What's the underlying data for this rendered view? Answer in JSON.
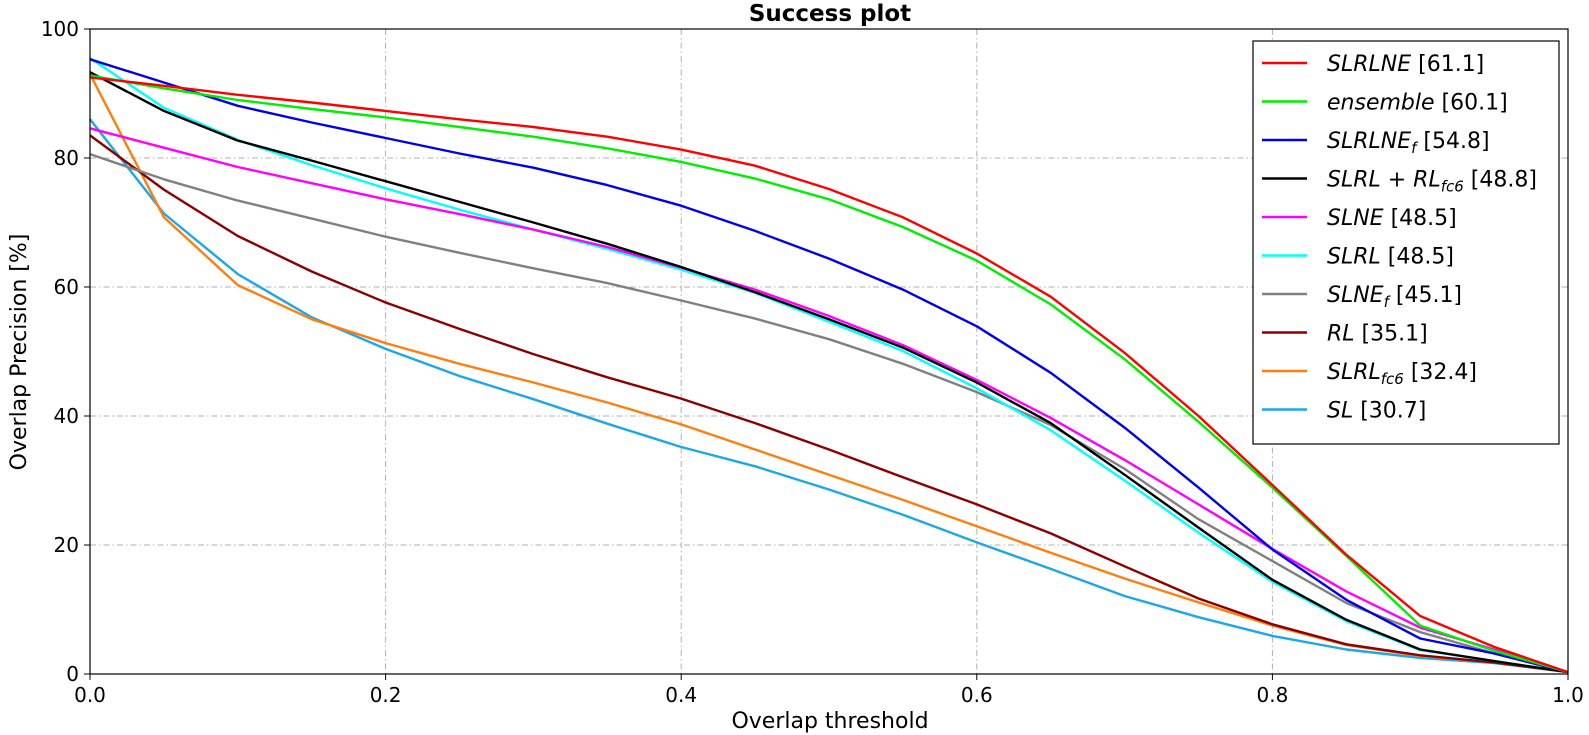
{
  "chart_data": {
    "type": "line",
    "title": "Success plot",
    "xlabel": "Overlap threshold",
    "ylabel": "Overlap Precision [%]",
    "xlim": [
      0,
      1
    ],
    "ylim": [
      0,
      100
    ],
    "x_ticks": [
      "0.0",
      "0.2",
      "0.4",
      "0.6",
      "0.8",
      "1.0"
    ],
    "y_ticks": [
      "0",
      "20",
      "40",
      "60",
      "80",
      "100"
    ],
    "grid": true,
    "legend_position": "top-right",
    "x": [
      0,
      0.05,
      0.1,
      0.15,
      0.2,
      0.25,
      0.3,
      0.35,
      0.4,
      0.45,
      0.5,
      0.55,
      0.6,
      0.65,
      0.7,
      0.75,
      0.8,
      0.85,
      0.9,
      0.95,
      1.0
    ],
    "series": [
      {
        "name": "SLRLNE",
        "base": "SLRLNE",
        "sub": "",
        "score": "[61.1]",
        "color": "#ff0000",
        "values": [
          92.5,
          91.2,
          89.8,
          88.6,
          87.3,
          86.0,
          84.8,
          83.3,
          81.3,
          78.8,
          75.2,
          70.8,
          65.2,
          58.5,
          49.8,
          40.0,
          29.3,
          18.5,
          9.0,
          4.2,
          0.3
        ]
      },
      {
        "name": "ensemble",
        "base": "ensemble",
        "sub": "",
        "score": "[60.1]",
        "color": "#00ee00",
        "values": [
          92.8,
          90.8,
          89.0,
          87.6,
          86.3,
          84.8,
          83.3,
          81.5,
          79.4,
          76.8,
          73.6,
          69.3,
          64.1,
          57.3,
          48.8,
          39.1,
          28.9,
          18.3,
          7.5,
          3.6,
          0.3
        ]
      },
      {
        "name": "SLRLNEf",
        "base": "SLRLNE",
        "sub": "f",
        "score": "[54.8]",
        "color": "#0000ee",
        "values": [
          95.3,
          91.7,
          88.1,
          85.5,
          83.1,
          80.7,
          78.5,
          75.8,
          72.6,
          68.7,
          64.4,
          59.6,
          53.9,
          46.7,
          38.2,
          28.9,
          19.3,
          11.5,
          5.5,
          3.2,
          0.3
        ]
      },
      {
        "name": "SLRL+RLfc6",
        "base": "SLRL + RL",
        "sub": "fc6",
        "score": "[48.8]",
        "color": "#000000",
        "values": [
          93.3,
          87.3,
          82.7,
          79.6,
          76.4,
          73.2,
          70.0,
          66.7,
          63.1,
          59.2,
          55.0,
          50.6,
          45.2,
          38.9,
          30.9,
          22.7,
          14.6,
          8.4,
          3.8,
          2.0,
          0.3
        ]
      },
      {
        "name": "SLNE",
        "base": "SLNE",
        "sub": "",
        "score": "[48.5]",
        "color": "#ff00ff",
        "values": [
          84.6,
          81.6,
          78.6,
          76.1,
          73.6,
          71.3,
          68.9,
          66.2,
          63.0,
          59.6,
          55.5,
          51.0,
          45.6,
          39.7,
          33.2,
          26.3,
          19.4,
          12.8,
          7.2,
          3.8,
          0.3
        ]
      },
      {
        "name": "SLRL",
        "base": "SLRL",
        "sub": "",
        "score": "[48.5]",
        "color": "#00ffff",
        "values": [
          95.5,
          87.8,
          82.8,
          78.9,
          75.3,
          72.0,
          68.9,
          65.9,
          62.7,
          59.1,
          54.6,
          50.1,
          44.3,
          37.8,
          30.0,
          21.9,
          14.3,
          8.2,
          3.7,
          2.0,
          0.3
        ]
      },
      {
        "name": "SLNEf",
        "base": "SLNE",
        "sub": "f",
        "score": "[45.1]",
        "color": "#808080",
        "values": [
          80.6,
          76.7,
          73.4,
          70.6,
          67.8,
          65.3,
          62.9,
          60.6,
          57.9,
          55.1,
          51.9,
          48.1,
          43.7,
          38.6,
          31.8,
          24.0,
          17.5,
          11.0,
          6.5,
          3.2,
          0.3
        ]
      },
      {
        "name": "RL",
        "base": "RL",
        "sub": "",
        "score": "[35.1]",
        "color": "#8b0000",
        "values": [
          83.5,
          75.1,
          67.9,
          62.4,
          57.6,
          53.5,
          49.6,
          46.0,
          42.7,
          38.9,
          34.8,
          30.5,
          26.3,
          21.8,
          16.7,
          11.7,
          7.7,
          4.6,
          2.9,
          1.8,
          0.3
        ]
      },
      {
        "name": "SLRLfc6",
        "base": "SLRL",
        "sub": "fc6",
        "score": "[32.4]",
        "color": "#ff7f0e",
        "values": [
          93.0,
          70.8,
          60.3,
          55.0,
          51.3,
          48.1,
          45.2,
          42.1,
          38.7,
          34.8,
          30.9,
          27.0,
          22.9,
          18.8,
          14.8,
          11.1,
          7.5,
          4.5,
          2.8,
          1.8,
          0.3
        ]
      },
      {
        "name": "SL",
        "base": "SL",
        "sub": "",
        "score": "[30.7]",
        "color": "#1ca7e8",
        "values": [
          86.0,
          71.4,
          62.0,
          55.3,
          50.4,
          46.2,
          42.6,
          38.8,
          35.2,
          32.2,
          28.6,
          24.7,
          20.4,
          16.3,
          12.1,
          8.8,
          5.9,
          3.8,
          2.5,
          1.7,
          0.3
        ]
      }
    ]
  }
}
